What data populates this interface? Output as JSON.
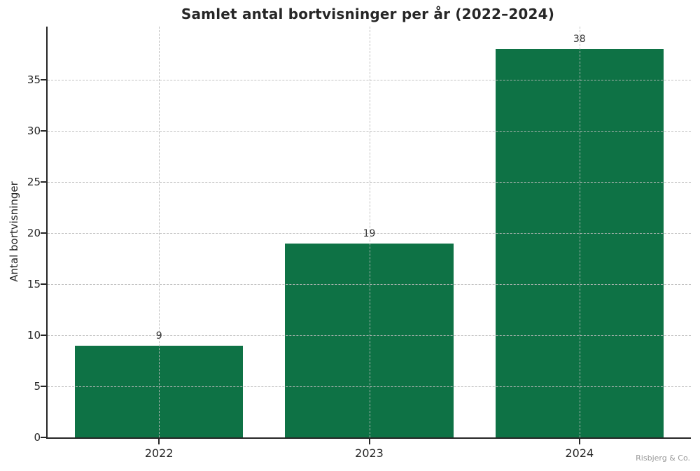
{
  "chart_data": {
    "type": "bar",
    "title": "Samlet antal bortvisninger per år (2022–2024)",
    "ylabel": "Antal bortvisninger",
    "xlabel": "",
    "categories": [
      "2022",
      "2023",
      "2024"
    ],
    "values": [
      9,
      19,
      38
    ],
    "bar_labels": [
      "9",
      "19",
      "38"
    ],
    "yticks": [
      0,
      5,
      10,
      15,
      20,
      25,
      30,
      35
    ],
    "ylim": [
      0,
      40.2
    ],
    "grid": "dashed-both-axes",
    "legend": "none",
    "bar_color": "#0e7245",
    "axis_color": "#262626",
    "grid_color": "#bababa",
    "footer": "Risbjerg & Co."
  }
}
